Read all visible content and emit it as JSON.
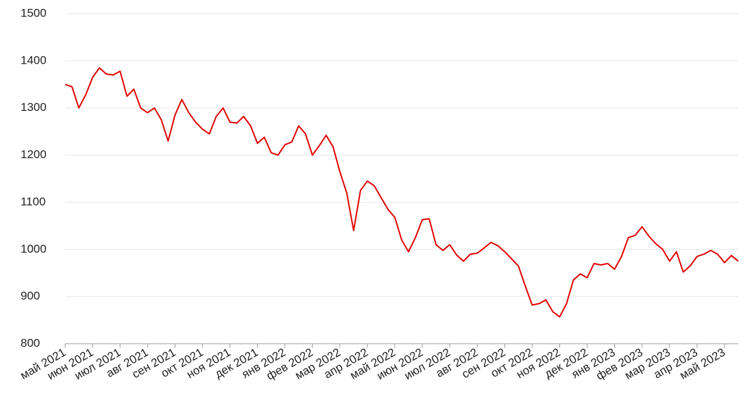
{
  "chart_data": {
    "type": "line",
    "categories": [
      "май 2021",
      null,
      null,
      null,
      "июн 2021",
      null,
      null,
      null,
      "июл 2021",
      null,
      null,
      null,
      "авг 2021",
      null,
      null,
      null,
      "сен 2021",
      null,
      null,
      null,
      "окт 2021",
      null,
      null,
      null,
      "ноя 2021",
      null,
      null,
      null,
      "дек 2021",
      null,
      null,
      null,
      "янв 2022",
      null,
      null,
      null,
      "фев 2022",
      null,
      null,
      null,
      "мар 2022",
      null,
      null,
      null,
      "апр 2022",
      null,
      null,
      null,
      "май 2022",
      null,
      null,
      null,
      "июн 2022",
      null,
      null,
      null,
      "июл 2022",
      null,
      null,
      null,
      "авг 2022",
      null,
      null,
      null,
      "сен 2022",
      null,
      null,
      null,
      "окт 2022",
      null,
      null,
      null,
      "ноя 2022",
      null,
      null,
      null,
      "дек 2022",
      null,
      null,
      null,
      "янв 2023",
      null,
      null,
      null,
      "фев 2023",
      null,
      null,
      null,
      "мар 2023",
      null,
      null,
      null,
      "апр 2023",
      null,
      null,
      null,
      "май 2023",
      null,
      null
    ],
    "series": [
      {
        "color": "#e00000",
        "values": [
          1350,
          1345,
          1300,
          1328,
          1365,
          1385,
          1372,
          1370,
          1378,
          1325,
          1340,
          1300,
          1290,
          1300,
          1275,
          1230,
          1285,
          1318,
          1290,
          1270,
          1255,
          1245,
          1282,
          1300,
          1270,
          1268,
          1282,
          1262,
          1225,
          1238,
          1205,
          1200,
          1222,
          1228,
          1262,
          1245,
          1200,
          1220,
          1242,
          1218,
          1165,
          1120,
          1040,
          1125,
          1145,
          1135,
          1110,
          1085,
          1068,
          1020,
          995,
          1025,
          1063,
          1065,
          1010,
          998,
          1010,
          988,
          975,
          990,
          992,
          1003,
          1015,
          1008,
          995,
          980,
          965,
          922,
          882,
          885,
          893,
          868,
          857,
          885,
          935,
          948,
          940,
          970,
          967,
          970,
          958,
          985,
          1025,
          1030,
          1048,
          1028,
          1012,
          1000,
          975,
          995,
          952,
          965,
          985,
          990,
          998,
          990,
          972,
          987,
          975
        ]
      }
    ],
    "ylim": [
      800,
      1500
    ],
    "yticks": [
      800,
      900,
      1000,
      1100,
      1200,
      1300,
      1400,
      1500
    ],
    "grid": true
  }
}
